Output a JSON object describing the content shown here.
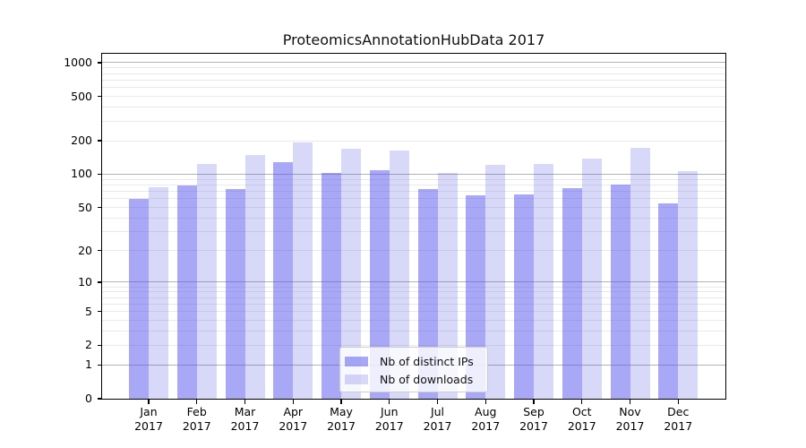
{
  "title": "ProteomicsAnnotationHubData 2017",
  "chart_data": {
    "type": "bar",
    "title": "ProteomicsAnnotationHubData 2017",
    "categories": [
      "Jan 2017",
      "Feb 2017",
      "Mar 2017",
      "Apr 2017",
      "May 2017",
      "Jun 2017",
      "Jul 2017",
      "Aug 2017",
      "Sep 2017",
      "Oct 2017",
      "Nov 2017",
      "Dec 2017"
    ],
    "series": [
      {
        "name": "Nb of distinct IPs",
        "color": "rgba(81,81,237,0.5)",
        "values": [
          60,
          79,
          73,
          128,
          103,
          108,
          74,
          65,
          66,
          75,
          81,
          54
        ]
      },
      {
        "name": "Nb of downloads",
        "color": "rgba(86,86,229,0.23)",
        "values": [
          76,
          123,
          148,
          194,
          171,
          163,
          102,
          122,
          124,
          139,
          172,
          107
        ]
      }
    ],
    "yscale": "log1p",
    "yticks": [
      0,
      1,
      2,
      5,
      10,
      20,
      50,
      100,
      200,
      500,
      1000
    ],
    "ylim": [
      0,
      1200
    ],
    "xlabel": "",
    "ylabel": "",
    "grid": {
      "major": [
        1,
        10,
        100,
        1000
      ],
      "major_color": "#b2b2b2",
      "minor_color": "#e9e9e9"
    },
    "legend_position": "lower center"
  }
}
